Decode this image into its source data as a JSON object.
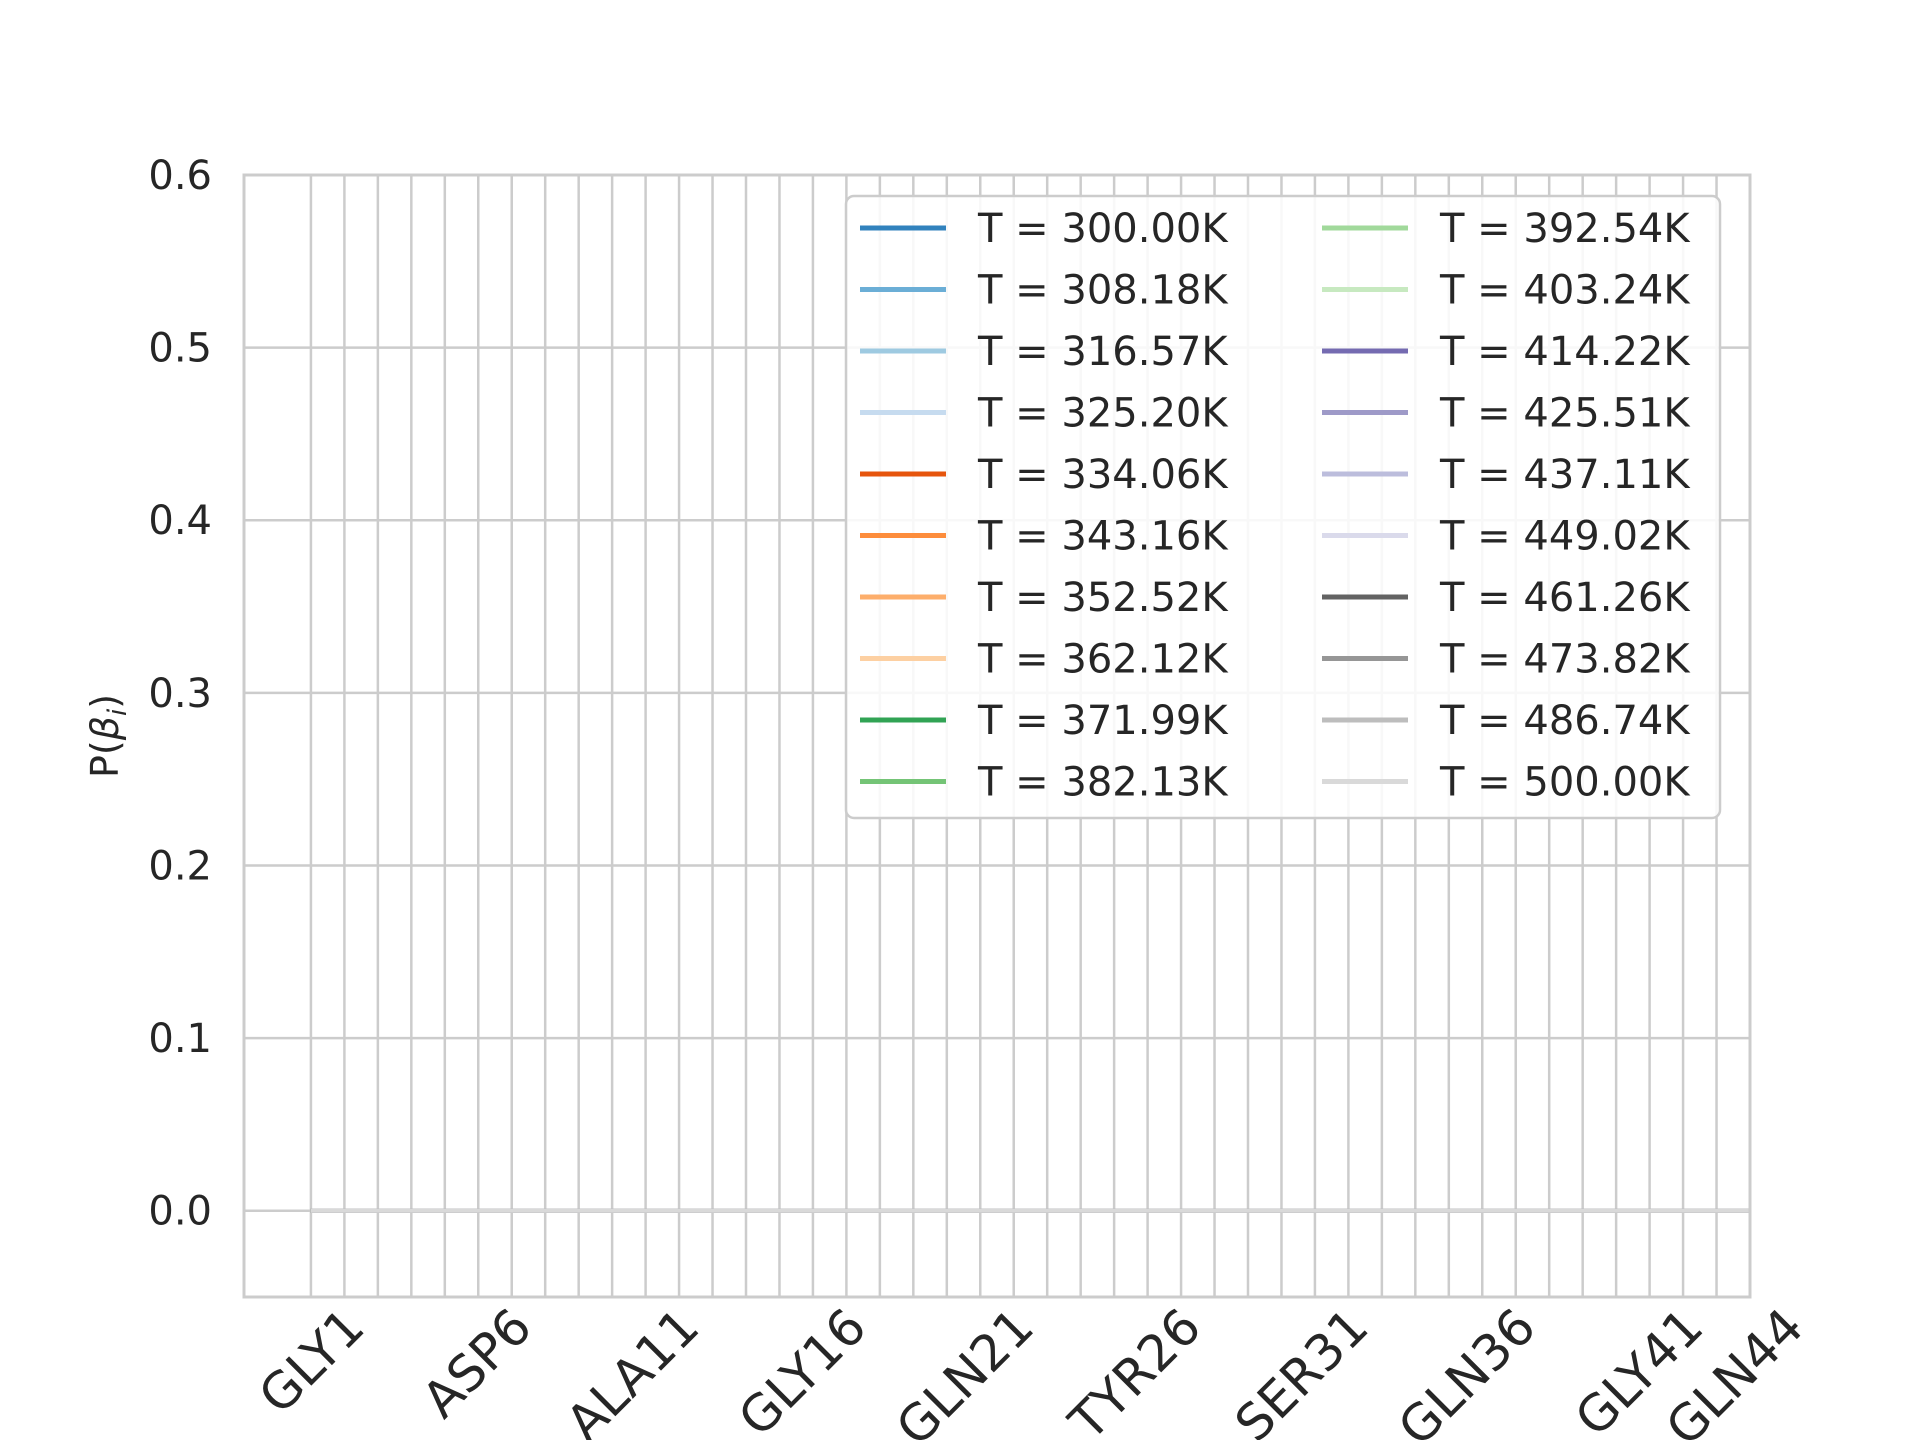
{
  "chart_data": {
    "type": "line",
    "title": "",
    "xlabel": "",
    "ylabel": "P(β_i)",
    "ylabel_parts": {
      "base": "P(",
      "symbol": "β",
      "sub": "i",
      "close": ")"
    },
    "ylim": [
      -0.05,
      0.6
    ],
    "yticks": [
      "0.0",
      "0.1",
      "0.2",
      "0.3",
      "0.4",
      "0.5",
      "0.6"
    ],
    "xlim": [
      -1.0,
      44.0
    ],
    "n_positions": 44,
    "xticks": [
      {
        "pos": 1,
        "label": "GLY1"
      },
      {
        "pos": 6,
        "label": "ASP6"
      },
      {
        "pos": 11,
        "label": "ALA11"
      },
      {
        "pos": 16,
        "label": "GLY16"
      },
      {
        "pos": 21,
        "label": "GLN21"
      },
      {
        "pos": 26,
        "label": "TYR26"
      },
      {
        "pos": 31,
        "label": "SER31"
      },
      {
        "pos": 36,
        "label": "GLN36"
      },
      {
        "pos": 41,
        "label": "GLY41"
      },
      {
        "pos": 44,
        "label": "GLN44"
      }
    ],
    "grid": true,
    "legend_position": "top-right",
    "series": [
      {
        "name": "T = 300.00K",
        "color": "#3182bd",
        "value": 0.0
      },
      {
        "name": "T = 308.18K",
        "color": "#6baed6",
        "value": 0.0
      },
      {
        "name": "T = 316.57K",
        "color": "#9ecae1",
        "value": 0.0
      },
      {
        "name": "T = 325.20K",
        "color": "#c6dbef",
        "value": 0.0
      },
      {
        "name": "T = 334.06K",
        "color": "#e6550d",
        "value": 0.0
      },
      {
        "name": "T = 343.16K",
        "color": "#fd8d3c",
        "value": 0.0
      },
      {
        "name": "T = 352.52K",
        "color": "#fdae6b",
        "value": 0.0
      },
      {
        "name": "T = 362.12K",
        "color": "#fdd0a2",
        "value": 0.0
      },
      {
        "name": "T = 371.99K",
        "color": "#31a354",
        "value": 0.0
      },
      {
        "name": "T = 382.13K",
        "color": "#74c476",
        "value": 0.0
      },
      {
        "name": "T = 392.54K",
        "color": "#a1d99b",
        "value": 0.0
      },
      {
        "name": "T = 403.24K",
        "color": "#c7e9c0",
        "value": 0.0
      },
      {
        "name": "T = 414.22K",
        "color": "#756bb1",
        "value": 0.0
      },
      {
        "name": "T = 425.51K",
        "color": "#9e9ac8",
        "value": 0.0
      },
      {
        "name": "T = 437.11K",
        "color": "#bcbddc",
        "value": 0.0
      },
      {
        "name": "T = 449.02K",
        "color": "#dadaeb",
        "value": 0.0
      },
      {
        "name": "T = 461.26K",
        "color": "#636363",
        "value": 0.0
      },
      {
        "name": "T = 473.82K",
        "color": "#969696",
        "value": 0.0
      },
      {
        "name": "T = 486.74K",
        "color": "#bdbdbd",
        "value": 0.0
      },
      {
        "name": "T = 500.00K",
        "color": "#d9d9d9",
        "value": 0.0
      }
    ]
  }
}
